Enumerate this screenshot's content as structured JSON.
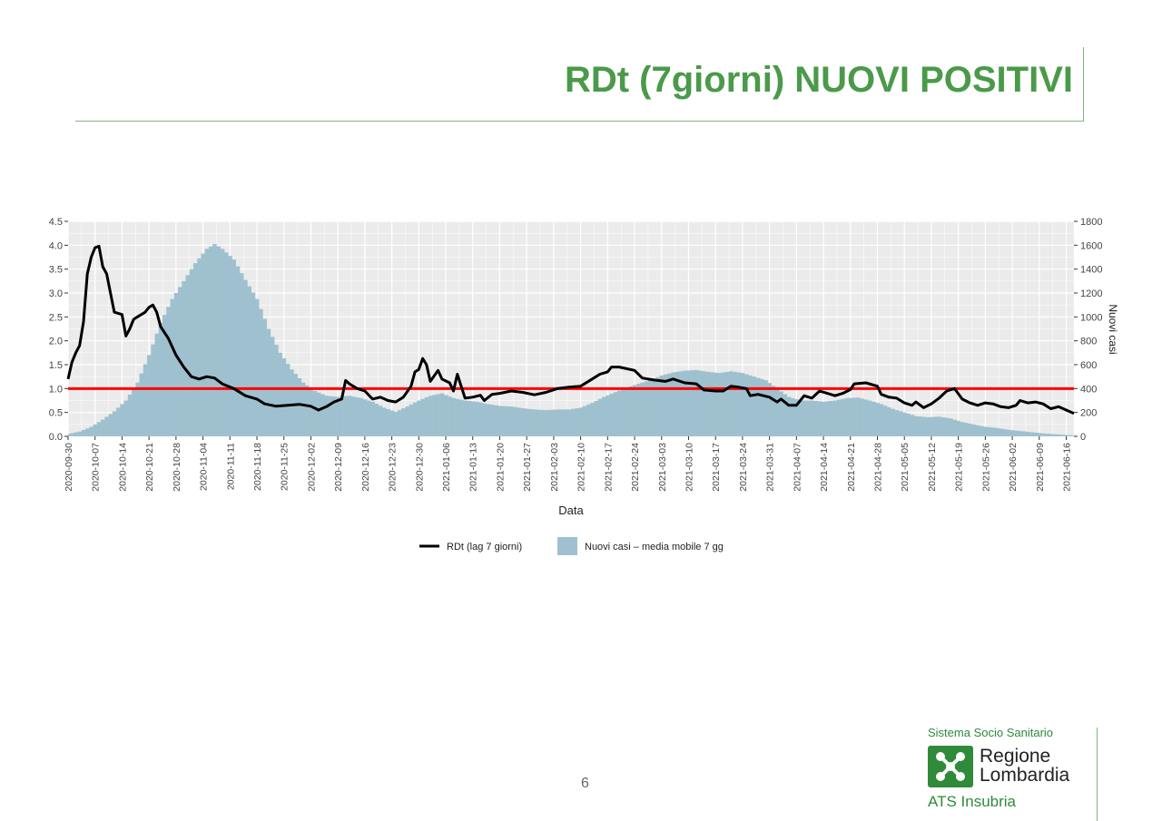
{
  "page": {
    "title": "RDt (7giorni) NUOVI POSITIVI",
    "page_number": "6"
  },
  "logo": {
    "top_text": "Sistema Socio Sanitario",
    "name_line1": "Regione",
    "name_line2": "Lombardia",
    "sub_text": "ATS Insubria",
    "brand_color": "#2f8a3a"
  },
  "colors": {
    "title": "#4a9a4a",
    "bars": "#9fc1cf",
    "line": "#000000",
    "threshold": "#ff0000",
    "panel": "#ebebeb"
  },
  "chart_data": {
    "type": "bar+line",
    "xlabel": "Data",
    "ylabel_left": "",
    "ylabel_right": "Nuovi casi",
    "ylim_left": [
      0,
      4.5
    ],
    "ylim_right": [
      0,
      1800
    ],
    "yticks_left": [
      "0.0",
      "0.5",
      "1.0",
      "1.5",
      "2.0",
      "2.5",
      "3.0",
      "3.5",
      "4.0",
      "4.5"
    ],
    "yticks_right": [
      "0",
      "200",
      "400",
      "600",
      "800",
      "1000",
      "1200",
      "1400",
      "1600",
      "1800"
    ],
    "x_start": "2020-09-30",
    "x_end": "2021-06-18",
    "x_ticks": [
      "2020-09-30",
      "2020-10-07",
      "2020-10-14",
      "2020-10-21",
      "2020-10-28",
      "2020-11-04",
      "2020-11-11",
      "2020-11-18",
      "2020-11-25",
      "2020-12-02",
      "2020-12-09",
      "2020-12-16",
      "2020-12-23",
      "2020-12-30",
      "2021-01-06",
      "2021-01-13",
      "2021-01-20",
      "2021-01-27",
      "2021-02-03",
      "2021-02-10",
      "2021-02-17",
      "2021-02-24",
      "2021-03-03",
      "2021-03-10",
      "2021-03-17",
      "2021-03-24",
      "2021-03-31",
      "2021-04-07",
      "2021-04-14",
      "2021-04-21",
      "2021-04-28",
      "2021-05-05",
      "2021-05-12",
      "2021-05-19",
      "2021-05-26",
      "2021-06-02",
      "2021-06-09",
      "2021-06-16"
    ],
    "threshold": 1.0,
    "grid": true,
    "legend_position": "bottom",
    "series": [
      {
        "name": "RDt (lag 7 giorni)",
        "type": "line",
        "axis": "left",
        "points": [
          [
            "2020-09-30",
            1.2
          ],
          [
            "2020-10-01",
            1.55
          ],
          [
            "2020-10-02",
            1.75
          ],
          [
            "2020-10-03",
            1.9
          ],
          [
            "2020-10-04",
            2.4
          ],
          [
            "2020-10-05",
            3.4
          ],
          [
            "2020-10-06",
            3.75
          ],
          [
            "2020-10-07",
            3.95
          ],
          [
            "2020-10-08",
            3.98
          ],
          [
            "2020-10-09",
            3.55
          ],
          [
            "2020-10-10",
            3.4
          ],
          [
            "2020-10-11",
            3.0
          ],
          [
            "2020-10-12",
            2.6
          ],
          [
            "2020-10-14",
            2.55
          ],
          [
            "2020-10-15",
            2.1
          ],
          [
            "2020-10-16",
            2.25
          ],
          [
            "2020-10-17",
            2.45
          ],
          [
            "2020-10-18",
            2.5
          ],
          [
            "2020-10-19",
            2.55
          ],
          [
            "2020-10-20",
            2.6
          ],
          [
            "2020-10-21",
            2.7
          ],
          [
            "2020-10-22",
            2.75
          ],
          [
            "2020-10-23",
            2.6
          ],
          [
            "2020-10-24",
            2.3
          ],
          [
            "2020-10-26",
            2.05
          ],
          [
            "2020-10-28",
            1.7
          ],
          [
            "2020-10-30",
            1.45
          ],
          [
            "2020-11-01",
            1.25
          ],
          [
            "2020-11-03",
            1.2
          ],
          [
            "2020-11-05",
            1.25
          ],
          [
            "2020-11-07",
            1.22
          ],
          [
            "2020-11-09",
            1.1
          ],
          [
            "2020-11-12",
            1.0
          ],
          [
            "2020-11-15",
            0.85
          ],
          [
            "2020-11-18",
            0.78
          ],
          [
            "2020-11-20",
            0.68
          ],
          [
            "2020-11-23",
            0.63
          ],
          [
            "2020-11-26",
            0.65
          ],
          [
            "2020-11-29",
            0.67
          ],
          [
            "2020-12-02",
            0.63
          ],
          [
            "2020-12-04",
            0.55
          ],
          [
            "2020-12-06",
            0.62
          ],
          [
            "2020-12-08",
            0.72
          ],
          [
            "2020-12-10",
            0.78
          ],
          [
            "2020-12-11",
            1.17
          ],
          [
            "2020-12-12",
            1.1
          ],
          [
            "2020-12-14",
            1.0
          ],
          [
            "2020-12-16",
            0.95
          ],
          [
            "2020-12-18",
            0.78
          ],
          [
            "2020-12-20",
            0.82
          ],
          [
            "2020-12-22",
            0.75
          ],
          [
            "2020-12-24",
            0.72
          ],
          [
            "2020-12-26",
            0.82
          ],
          [
            "2020-12-28",
            1.05
          ],
          [
            "2020-12-29",
            1.35
          ],
          [
            "2020-12-30",
            1.4
          ],
          [
            "2020-12-31",
            1.63
          ],
          [
            "2021-01-01",
            1.5
          ],
          [
            "2021-01-02",
            1.15
          ],
          [
            "2021-01-04",
            1.38
          ],
          [
            "2021-01-05",
            1.2
          ],
          [
            "2021-01-07",
            1.12
          ],
          [
            "2021-01-08",
            0.95
          ],
          [
            "2021-01-09",
            1.3
          ],
          [
            "2021-01-10",
            1.05
          ],
          [
            "2021-01-11",
            0.8
          ],
          [
            "2021-01-13",
            0.82
          ],
          [
            "2021-01-15",
            0.86
          ],
          [
            "2021-01-16",
            0.75
          ],
          [
            "2021-01-18",
            0.88
          ],
          [
            "2021-01-20",
            0.9
          ],
          [
            "2021-01-23",
            0.95
          ],
          [
            "2021-01-26",
            0.92
          ],
          [
            "2021-01-29",
            0.87
          ],
          [
            "2021-02-01",
            0.92
          ],
          [
            "2021-02-04",
            1.0
          ],
          [
            "2021-02-07",
            1.03
          ],
          [
            "2021-02-10",
            1.05
          ],
          [
            "2021-02-13",
            1.2
          ],
          [
            "2021-02-15",
            1.3
          ],
          [
            "2021-02-17",
            1.35
          ],
          [
            "2021-02-18",
            1.45
          ],
          [
            "2021-02-20",
            1.45
          ],
          [
            "2021-02-24",
            1.38
          ],
          [
            "2021-02-26",
            1.22
          ],
          [
            "2021-03-01",
            1.18
          ],
          [
            "2021-03-04",
            1.15
          ],
          [
            "2021-03-06",
            1.2
          ],
          [
            "2021-03-09",
            1.12
          ],
          [
            "2021-03-12",
            1.1
          ],
          [
            "2021-03-14",
            0.97
          ],
          [
            "2021-03-17",
            0.95
          ],
          [
            "2021-03-19",
            0.95
          ],
          [
            "2021-03-21",
            1.05
          ],
          [
            "2021-03-23",
            1.03
          ],
          [
            "2021-03-25",
            1.0
          ],
          [
            "2021-03-26",
            0.85
          ],
          [
            "2021-03-28",
            0.88
          ],
          [
            "2021-03-31",
            0.82
          ],
          [
            "2021-04-02",
            0.72
          ],
          [
            "2021-04-03",
            0.78
          ],
          [
            "2021-04-05",
            0.65
          ],
          [
            "2021-04-07",
            0.65
          ],
          [
            "2021-04-09",
            0.85
          ],
          [
            "2021-04-11",
            0.8
          ],
          [
            "2021-04-13",
            0.95
          ],
          [
            "2021-04-15",
            0.9
          ],
          [
            "2021-04-17",
            0.85
          ],
          [
            "2021-04-19",
            0.9
          ],
          [
            "2021-04-21",
            0.98
          ],
          [
            "2021-04-22",
            1.1
          ],
          [
            "2021-04-25",
            1.12
          ],
          [
            "2021-04-28",
            1.05
          ],
          [
            "2021-04-29",
            0.88
          ],
          [
            "2021-05-01",
            0.82
          ],
          [
            "2021-05-03",
            0.8
          ],
          [
            "2021-05-05",
            0.7
          ],
          [
            "2021-05-07",
            0.65
          ],
          [
            "2021-05-08",
            0.72
          ],
          [
            "2021-05-10",
            0.6
          ],
          [
            "2021-05-12",
            0.68
          ],
          [
            "2021-05-14",
            0.8
          ],
          [
            "2021-05-16",
            0.95
          ],
          [
            "2021-05-18",
            1.0
          ],
          [
            "2021-05-20",
            0.78
          ],
          [
            "2021-05-22",
            0.7
          ],
          [
            "2021-05-24",
            0.65
          ],
          [
            "2021-05-26",
            0.7
          ],
          [
            "2021-05-28",
            0.68
          ],
          [
            "2021-05-30",
            0.62
          ],
          [
            "2021-06-01",
            0.6
          ],
          [
            "2021-06-03",
            0.65
          ],
          [
            "2021-06-04",
            0.75
          ],
          [
            "2021-06-06",
            0.7
          ],
          [
            "2021-06-08",
            0.72
          ],
          [
            "2021-06-10",
            0.68
          ],
          [
            "2021-06-12",
            0.58
          ],
          [
            "2021-06-14",
            0.62
          ],
          [
            "2021-06-16",
            0.55
          ],
          [
            "2021-06-18",
            0.48
          ]
        ]
      },
      {
        "name": "Nuovi casi – media mobile 7 gg",
        "type": "bar",
        "axis": "right",
        "points": [
          [
            "2020-09-30",
            20
          ],
          [
            "2020-10-03",
            40
          ],
          [
            "2020-10-06",
            80
          ],
          [
            "2020-10-09",
            140
          ],
          [
            "2020-10-12",
            210
          ],
          [
            "2020-10-15",
            300
          ],
          [
            "2020-10-18",
            450
          ],
          [
            "2020-10-21",
            680
          ],
          [
            "2020-10-24",
            950
          ],
          [
            "2020-10-27",
            1150
          ],
          [
            "2020-10-30",
            1300
          ],
          [
            "2020-11-02",
            1450
          ],
          [
            "2020-11-05",
            1570
          ],
          [
            "2020-11-07",
            1610
          ],
          [
            "2020-11-09",
            1570
          ],
          [
            "2020-11-12",
            1480
          ],
          [
            "2020-11-15",
            1310
          ],
          [
            "2020-11-18",
            1150
          ],
          [
            "2020-11-21",
            900
          ],
          [
            "2020-11-24",
            700
          ],
          [
            "2020-11-27",
            560
          ],
          [
            "2020-11-30",
            450
          ],
          [
            "2020-12-03",
            380
          ],
          [
            "2020-12-06",
            340
          ],
          [
            "2020-12-09",
            330
          ],
          [
            "2020-12-12",
            340
          ],
          [
            "2020-12-15",
            320
          ],
          [
            "2020-12-18",
            290
          ],
          [
            "2020-12-21",
            240
          ],
          [
            "2020-12-24",
            205
          ],
          [
            "2020-12-27",
            250
          ],
          [
            "2020-12-30",
            300
          ],
          [
            "2021-01-02",
            340
          ],
          [
            "2021-01-05",
            360
          ],
          [
            "2021-01-08",
            320
          ],
          [
            "2021-01-11",
            300
          ],
          [
            "2021-01-14",
            290
          ],
          [
            "2021-01-17",
            270
          ],
          [
            "2021-01-20",
            255
          ],
          [
            "2021-01-23",
            250
          ],
          [
            "2021-01-26",
            235
          ],
          [
            "2021-01-29",
            225
          ],
          [
            "2021-02-01",
            220
          ],
          [
            "2021-02-04",
            225
          ],
          [
            "2021-02-07",
            225
          ],
          [
            "2021-02-10",
            240
          ],
          [
            "2021-02-13",
            280
          ],
          [
            "2021-02-16",
            330
          ],
          [
            "2021-02-19",
            370
          ],
          [
            "2021-02-22",
            410
          ],
          [
            "2021-02-25",
            440
          ],
          [
            "2021-02-28",
            470
          ],
          [
            "2021-03-03",
            510
          ],
          [
            "2021-03-06",
            535
          ],
          [
            "2021-03-09",
            550
          ],
          [
            "2021-03-12",
            555
          ],
          [
            "2021-03-15",
            540
          ],
          [
            "2021-03-18",
            530
          ],
          [
            "2021-03-21",
            545
          ],
          [
            "2021-03-24",
            530
          ],
          [
            "2021-03-27",
            500
          ],
          [
            "2021-03-30",
            470
          ],
          [
            "2021-04-02",
            400
          ],
          [
            "2021-04-05",
            330
          ],
          [
            "2021-04-08",
            300
          ],
          [
            "2021-04-11",
            300
          ],
          [
            "2021-04-14",
            290
          ],
          [
            "2021-04-17",
            300
          ],
          [
            "2021-04-20",
            320
          ],
          [
            "2021-04-23",
            325
          ],
          [
            "2021-04-26",
            300
          ],
          [
            "2021-04-29",
            270
          ],
          [
            "2021-05-02",
            230
          ],
          [
            "2021-05-05",
            200
          ],
          [
            "2021-05-08",
            170
          ],
          [
            "2021-05-11",
            160
          ],
          [
            "2021-05-14",
            165
          ],
          [
            "2021-05-17",
            150
          ],
          [
            "2021-05-20",
            120
          ],
          [
            "2021-05-23",
            100
          ],
          [
            "2021-05-26",
            80
          ],
          [
            "2021-05-29",
            70
          ],
          [
            "2021-06-01",
            55
          ],
          [
            "2021-06-04",
            45
          ],
          [
            "2021-06-07",
            35
          ],
          [
            "2021-06-10",
            25
          ],
          [
            "2021-06-13",
            18
          ],
          [
            "2021-06-16",
            12
          ],
          [
            "2021-06-18",
            8
          ]
        ]
      }
    ]
  }
}
